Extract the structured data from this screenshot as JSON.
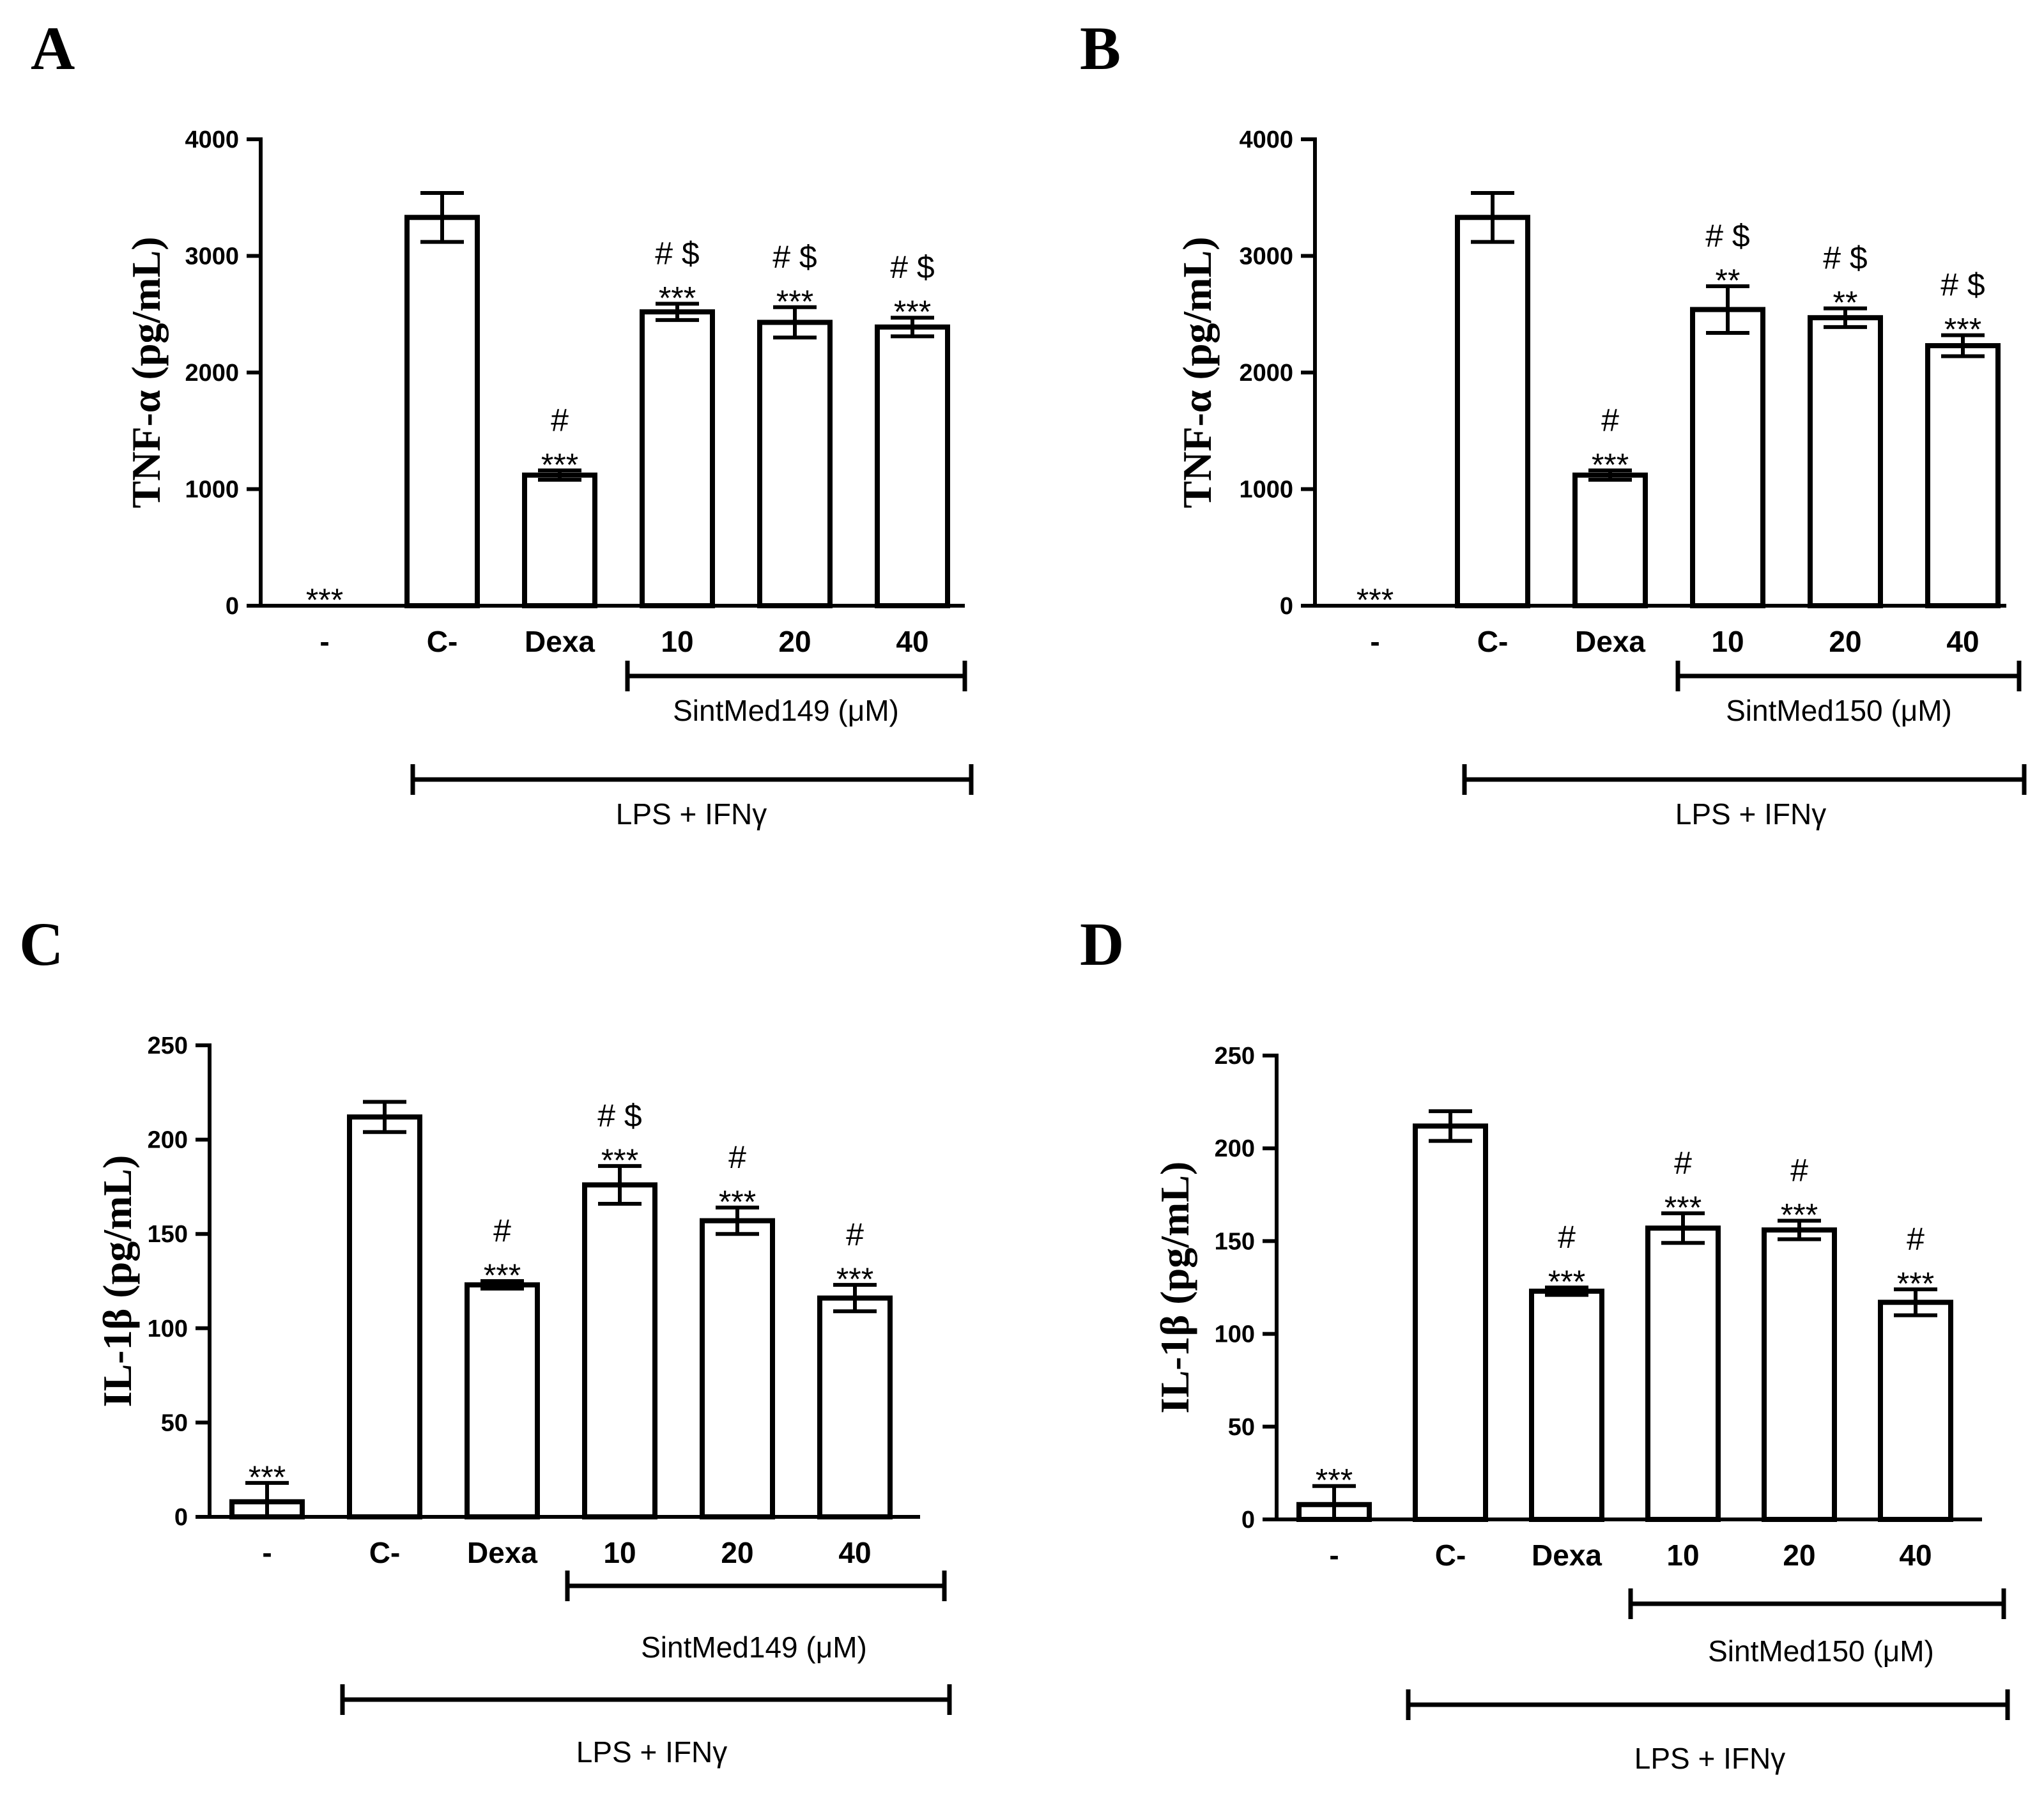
{
  "chart_data": [
    {
      "panel": "A",
      "type": "bar",
      "ylabel": "TNF-α (pg/mL)",
      "ylim": [
        0,
        4000
      ],
      "yticks": [
        "0",
        "1000",
        "2000",
        "3000",
        "4000"
      ],
      "categories": [
        "-",
        "C-",
        "Dexa",
        "10",
        "20",
        "40"
      ],
      "values": [
        0,
        3330,
        1120,
        2520,
        2430,
        2390
      ],
      "errors": [
        0,
        210,
        40,
        70,
        130,
        80
      ],
      "annotations": [
        [
          "***"
        ],
        [],
        [
          "#",
          "***"
        ],
        [
          "# $",
          "***"
        ],
        [
          "# $",
          "***"
        ],
        [
          "# $",
          "***"
        ]
      ],
      "groups": [
        {
          "label": "SintMed149 (μM)",
          "from": 3,
          "to": 5
        },
        {
          "label": "LPS  + IFNγ",
          "from": 1,
          "to": 5
        }
      ]
    },
    {
      "panel": "B",
      "type": "bar",
      "ylabel": "TNF-α (pg/mL)",
      "ylim": [
        0,
        4000
      ],
      "yticks": [
        "0",
        "1000",
        "2000",
        "3000",
        "4000"
      ],
      "categories": [
        "-",
        "C-",
        "Dexa",
        "10",
        "20",
        "40"
      ],
      "values": [
        0,
        3330,
        1120,
        2540,
        2470,
        2230
      ],
      "errors": [
        0,
        210,
        40,
        200,
        80,
        90
      ],
      "annotations": [
        [
          "***"
        ],
        [],
        [
          "#",
          "***"
        ],
        [
          "# $",
          "**"
        ],
        [
          "# $",
          "**"
        ],
        [
          "# $",
          "***"
        ]
      ],
      "groups": [
        {
          "label": "SintMed150 (μM)",
          "from": 3,
          "to": 5
        },
        {
          "label": "LPS  + IFNγ",
          "from": 1,
          "to": 5
        }
      ]
    },
    {
      "panel": "C",
      "type": "bar",
      "ylabel": "IL-1β (pg/mL)",
      "ylim": [
        0,
        250
      ],
      "yticks": [
        "0",
        "50",
        "100",
        "150",
        "200",
        "250"
      ],
      "categories": [
        "-",
        "C-",
        "Dexa",
        "10",
        "20",
        "40"
      ],
      "values": [
        8,
        212,
        123,
        176,
        157,
        116
      ],
      "errors": [
        10,
        8,
        2,
        10,
        7,
        7
      ],
      "annotations": [
        [
          "***"
        ],
        [],
        [
          "#",
          "***"
        ],
        [
          "# $",
          "***"
        ],
        [
          "#",
          "***"
        ],
        [
          "#",
          "***"
        ]
      ],
      "groups": [
        {
          "label": "SintMed149  (μM)",
          "from": 3,
          "to": 5
        },
        {
          "label": "LPS  + IFNγ",
          "from": 1,
          "to": 5
        }
      ]
    },
    {
      "panel": "D",
      "type": "bar",
      "ylabel": "IL-1β (pg/mL)",
      "ylim": [
        0,
        250
      ],
      "yticks": [
        "0",
        "50",
        "100",
        "150",
        "200",
        "250"
      ],
      "categories": [
        "-",
        "C-",
        "Dexa",
        "10",
        "20",
        "40"
      ],
      "values": [
        8,
        212,
        123,
        157,
        156,
        117
      ],
      "errors": [
        10,
        8,
        2,
        8,
        5,
        7
      ],
      "annotations": [
        [
          "***"
        ],
        [],
        [
          "#",
          "***"
        ],
        [
          "#",
          "***"
        ],
        [
          "#",
          "***"
        ],
        [
          "#",
          "***"
        ]
      ],
      "groups": [
        {
          "label": "SintMed150  (μM)",
          "from": 3,
          "to": 5
        },
        {
          "label": "LPS  + IFNγ",
          "from": 1,
          "to": 5
        }
      ]
    }
  ]
}
